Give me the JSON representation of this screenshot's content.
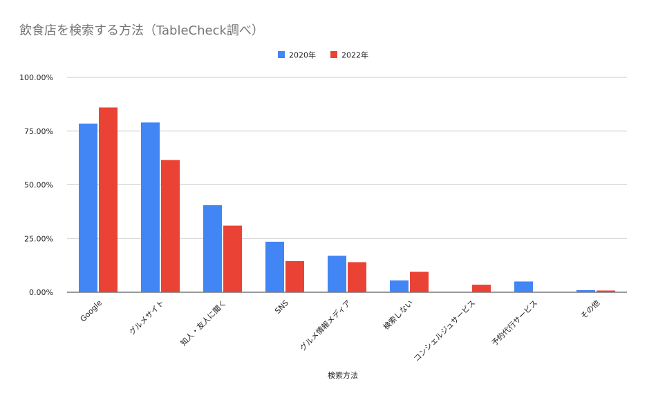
{
  "chart_data": {
    "type": "bar",
    "title": "飲食店を検索する方法（TableCheck調べ）",
    "xlabel": "検索方法",
    "ylabel": "",
    "categories": [
      "Google",
      "グルメサイト",
      "知人・友人に聞く",
      "SNS",
      "グルメ情報メディア",
      "検索しない",
      "コンシェルジュサービス",
      "予約代行サービス",
      "その他"
    ],
    "series": [
      {
        "name": "2020年",
        "color": "#4285f4",
        "values": [
          78.5,
          79.0,
          40.5,
          23.5,
          17.0,
          5.5,
          0,
          5.0,
          1.0
        ]
      },
      {
        "name": "2022年",
        "color": "#ea4335",
        "values": [
          86.0,
          61.5,
          31.0,
          14.5,
          14.0,
          9.5,
          3.5,
          0,
          0.8
        ]
      }
    ],
    "ylim": [
      0,
      100
    ],
    "yticks": [
      "0.00%",
      "25.00%",
      "50.00%",
      "75.00%",
      "100.00%"
    ],
    "grid": true,
    "legend": "top"
  }
}
